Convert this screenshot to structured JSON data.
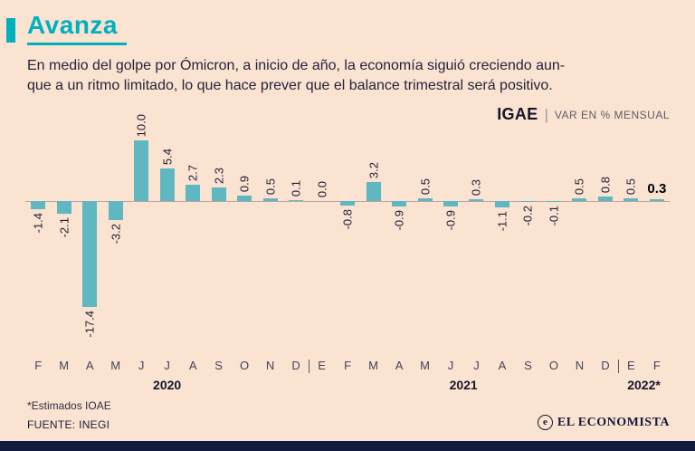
{
  "header": {
    "title": "Avanza",
    "description_line1": "En medio del golpe por Ómicron, a inicio de año, la economía siguió creciendo aun-",
    "description_line2": "que a un ritmo limitado, lo que hace prever que el balance trimestral será positivo."
  },
  "chart_header": {
    "title": "IGAE",
    "separator": "|",
    "subtitle": "VAR EN % MENSUAL"
  },
  "chart_data": {
    "type": "bar",
    "title": "IGAE",
    "ylabel": "VAR EN % MENSUAL",
    "unit": "%",
    "grid": false,
    "legend": "none",
    "ylim": [
      -18,
      11
    ],
    "bar_color": "#5fb7c2",
    "categories": [
      "F",
      "M",
      "A",
      "M",
      "J",
      "J",
      "A",
      "S",
      "O",
      "N",
      "D",
      "E",
      "F",
      "M",
      "A",
      "M",
      "J",
      "J",
      "A",
      "S",
      "O",
      "N",
      "D",
      "E",
      "F"
    ],
    "values": [
      -1.4,
      -2.1,
      -17.4,
      -3.2,
      10.0,
      5.4,
      2.7,
      2.3,
      0.9,
      0.5,
      0.1,
      0.0,
      -0.8,
      3.2,
      -0.9,
      0.5,
      -0.9,
      0.3,
      -1.1,
      -0.2,
      -0.1,
      0.5,
      0.8,
      0.5,
      0.3
    ],
    "groups": [
      {
        "year": "2020",
        "start": 0,
        "end": 10
      },
      {
        "year": "2021",
        "start": 11,
        "end": 22
      },
      {
        "year": "2022*",
        "start": 23,
        "end": 24
      }
    ],
    "emphasis_index": 24
  },
  "footer": {
    "note": "*Estimados IOAE",
    "source": "FUENTE: INEGI",
    "brand": "EL ECONOMISTA",
    "brand_icon": "e"
  },
  "colors": {
    "background": "#fbe3d1",
    "accent": "#00b0bf",
    "bar": "#5fb7c2",
    "navy": "#121a3e",
    "text": "#20203a"
  }
}
